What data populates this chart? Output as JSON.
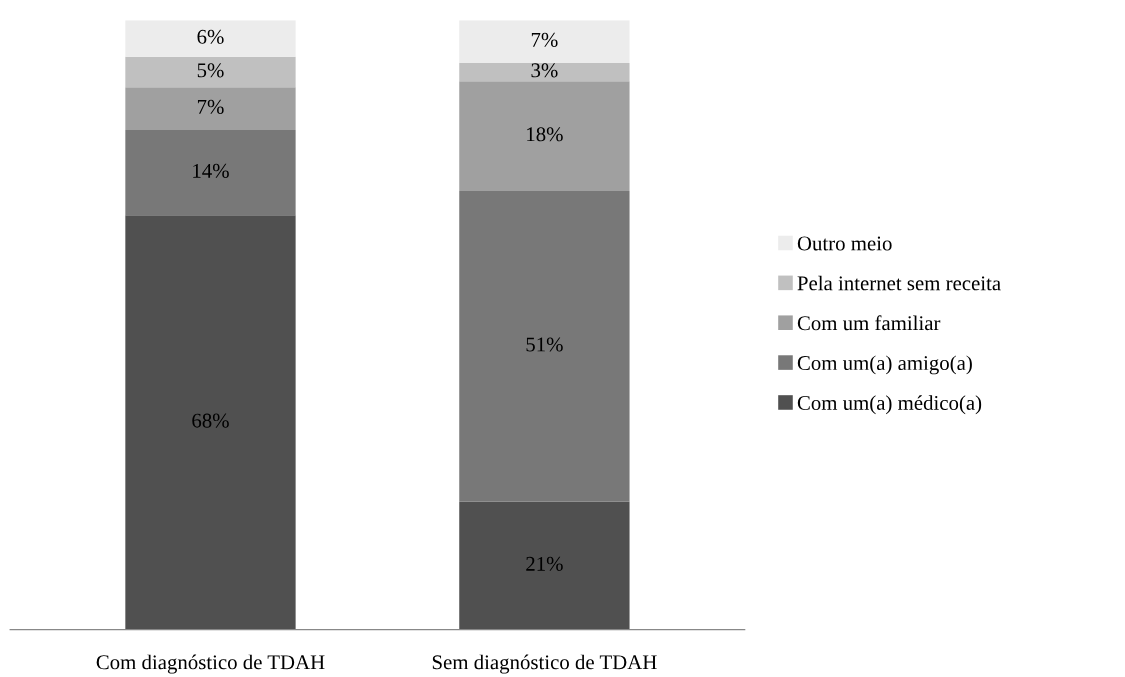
{
  "chart_data": {
    "type": "bar",
    "stacked": true,
    "legend": "right",
    "grid": false,
    "categories": [
      "Com diagnóstico de TDAH",
      "Sem diagnóstico de TDAH"
    ],
    "series": [
      {
        "name": "Com um(a) médico(a)",
        "color": "#505050",
        "values": [
          68,
          21
        ],
        "value_labels": [
          "68%",
          "21%"
        ]
      },
      {
        "name": "Com um(a) amigo(a)",
        "color": "#787878",
        "values": [
          14,
          51
        ],
        "value_labels": [
          "14%",
          "51%"
        ]
      },
      {
        "name": "Com um familiar",
        "color": "#a0a0a0",
        "values": [
          7,
          18
        ],
        "value_labels": [
          "7%",
          "18%"
        ]
      },
      {
        "name": "Pela internet sem receita",
        "color": "#c0c0c0",
        "values": [
          5,
          3
        ],
        "value_labels": [
          "5%",
          "3%"
        ]
      },
      {
        "name": "Outro meio",
        "color": "#ececec",
        "values": [
          6,
          7
        ],
        "value_labels": [
          "6%",
          "7%"
        ]
      }
    ]
  }
}
